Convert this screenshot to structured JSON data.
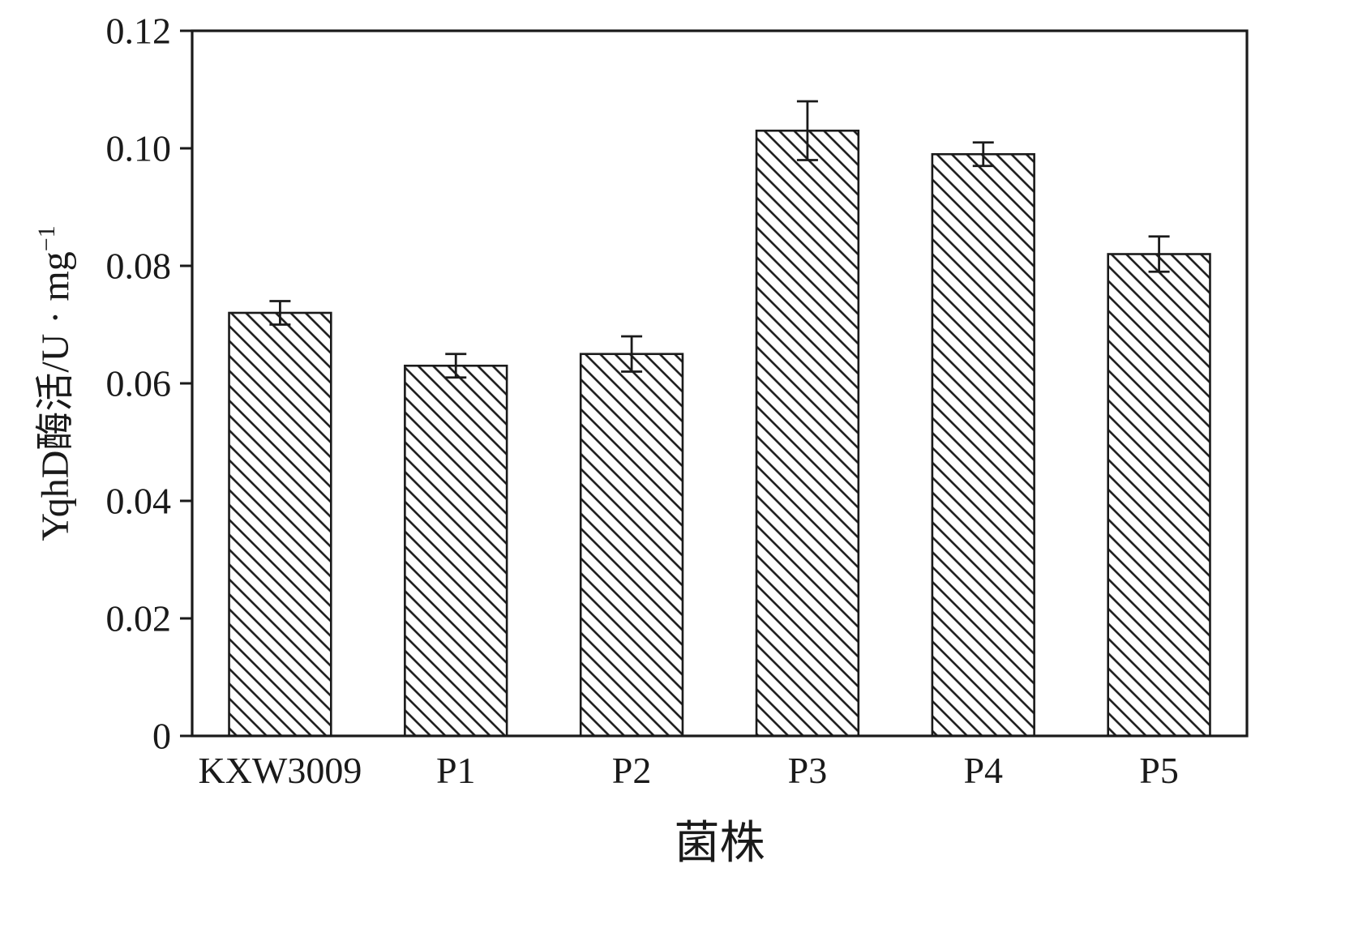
{
  "chart_data": {
    "type": "bar",
    "categories": [
      "KXW3009",
      "P1",
      "P2",
      "P3",
      "P4",
      "P5"
    ],
    "values": [
      0.072,
      0.063,
      0.065,
      0.103,
      0.099,
      0.082
    ],
    "errors": [
      0.002,
      0.002,
      0.003,
      0.005,
      0.002,
      0.003
    ],
    "title": "",
    "xlabel": "菌株",
    "ylabel": "YqhD酶活/U · mg⁻¹",
    "ylabel_main": "YqhD酶活/U · mg",
    "ylabel_exp": "−1",
    "ylim": [
      0,
      0.12
    ],
    "yticks": [
      0,
      0.02,
      0.04,
      0.06,
      0.08,
      0.1,
      0.12
    ],
    "ytick_labels": [
      "0",
      "0.02",
      "0.04",
      "0.06",
      "0.08",
      "0.10",
      "0.12"
    ],
    "grid": false,
    "legend": null,
    "bar_fill": "#ffffff",
    "line_color": "#1a1a1a",
    "hatch_style": "diagonal-backslash"
  }
}
